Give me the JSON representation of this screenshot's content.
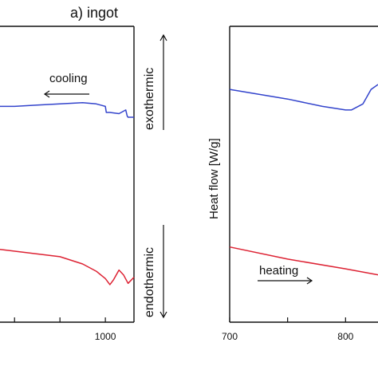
{
  "panel_label": "a) ingot",
  "annotations": {
    "exothermic": "exothermic",
    "endothermic": "endothermic",
    "cooling": "cooling",
    "heating": "heating"
  },
  "colors": {
    "cooling_curve": "#3344cc",
    "heating_curve": "#dd2233",
    "axis": "#111111"
  },
  "chart_data": [
    {
      "type": "line",
      "panel": "left",
      "xlabel": "",
      "ylabel": "",
      "xlim": [
        768,
        1063
      ],
      "x_ticks": [
        {
          "value": 800,
          "label": ""
        },
        {
          "value": 900,
          "label": ""
        },
        {
          "value": 1000,
          "label": "1000"
        }
      ],
      "series": [
        {
          "color": "#3344cc",
          "x": [
            768,
            800,
            850,
            900,
            950,
            980,
            1000,
            1002,
            1010,
            1030,
            1045,
            1048,
            1050,
            1063
          ],
          "y": [
            0.59,
            0.59,
            0.595,
            0.6,
            0.605,
            0.6,
            0.59,
            0.565,
            0.565,
            0.56,
            0.575,
            0.55,
            0.545,
            0.545
          ]
        },
        {
          "color": "#dd2233",
          "x": [
            768,
            900,
            950,
            980,
            1000,
            1010,
            1018,
            1030,
            1040,
            1050,
            1063
          ],
          "y": [
            0.0,
            -0.03,
            -0.06,
            -0.09,
            -0.12,
            -0.145,
            -0.125,
            -0.085,
            -0.105,
            -0.14,
            -0.115
          ]
        }
      ]
    },
    {
      "type": "line",
      "panel": "right",
      "xlabel": "",
      "ylabel": "Heat flow [W/g]",
      "xlim": [
        700,
        828
      ],
      "x_ticks": [
        {
          "value": 700,
          "label": "700"
        },
        {
          "value": 750,
          "label": ""
        },
        {
          "value": 800,
          "label": "800"
        }
      ],
      "series": [
        {
          "color": "#3344cc",
          "x": [
            700,
            750,
            780,
            800,
            805,
            815,
            822,
            828
          ],
          "y": [
            0.66,
            0.62,
            0.59,
            0.575,
            0.575,
            0.6,
            0.66,
            0.68
          ]
        },
        {
          "color": "#dd2233",
          "x": [
            700,
            750,
            800,
            828
          ],
          "y": [
            0.01,
            -0.04,
            -0.08,
            -0.105
          ]
        }
      ]
    }
  ]
}
